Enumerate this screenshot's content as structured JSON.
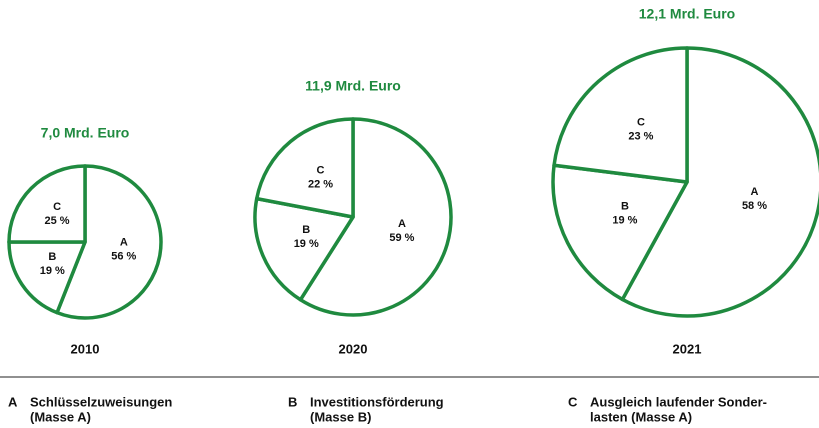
{
  "chart_data": [
    {
      "type": "pie",
      "title": "7,0 Mrd. Euro",
      "label": "2010",
      "categories": [
        "A",
        "B",
        "C"
      ],
      "values": [
        56,
        19,
        25
      ],
      "value_labels": [
        "56 %",
        "19 %",
        "25 %"
      ],
      "color": "#1f8a3f"
    },
    {
      "type": "pie",
      "title": "11,9 Mrd. Euro",
      "label": "2020",
      "categories": [
        "A",
        "B",
        "C"
      ],
      "values": [
        59,
        19,
        22
      ],
      "value_labels": [
        "59 %",
        "19 %",
        "22 %"
      ],
      "color": "#1f8a3f"
    },
    {
      "type": "pie",
      "title": "12,1 Mrd. Euro",
      "label": "2021",
      "categories": [
        "A",
        "B",
        "C"
      ],
      "values": [
        58,
        19,
        23
      ],
      "value_labels": [
        "58 %",
        "19 %",
        "23 %"
      ],
      "color": "#1f8a3f"
    }
  ],
  "legend": [
    {
      "key": "A",
      "lines": [
        "Schlüsselzuweisungen",
        "(Masse A)"
      ]
    },
    {
      "key": "B",
      "lines": [
        "Investitionsförderung",
        "(Masse B)"
      ]
    },
    {
      "key": "C",
      "lines": [
        "Ausgleich laufender Sonder-",
        "lasten (Masse A)"
      ]
    }
  ]
}
